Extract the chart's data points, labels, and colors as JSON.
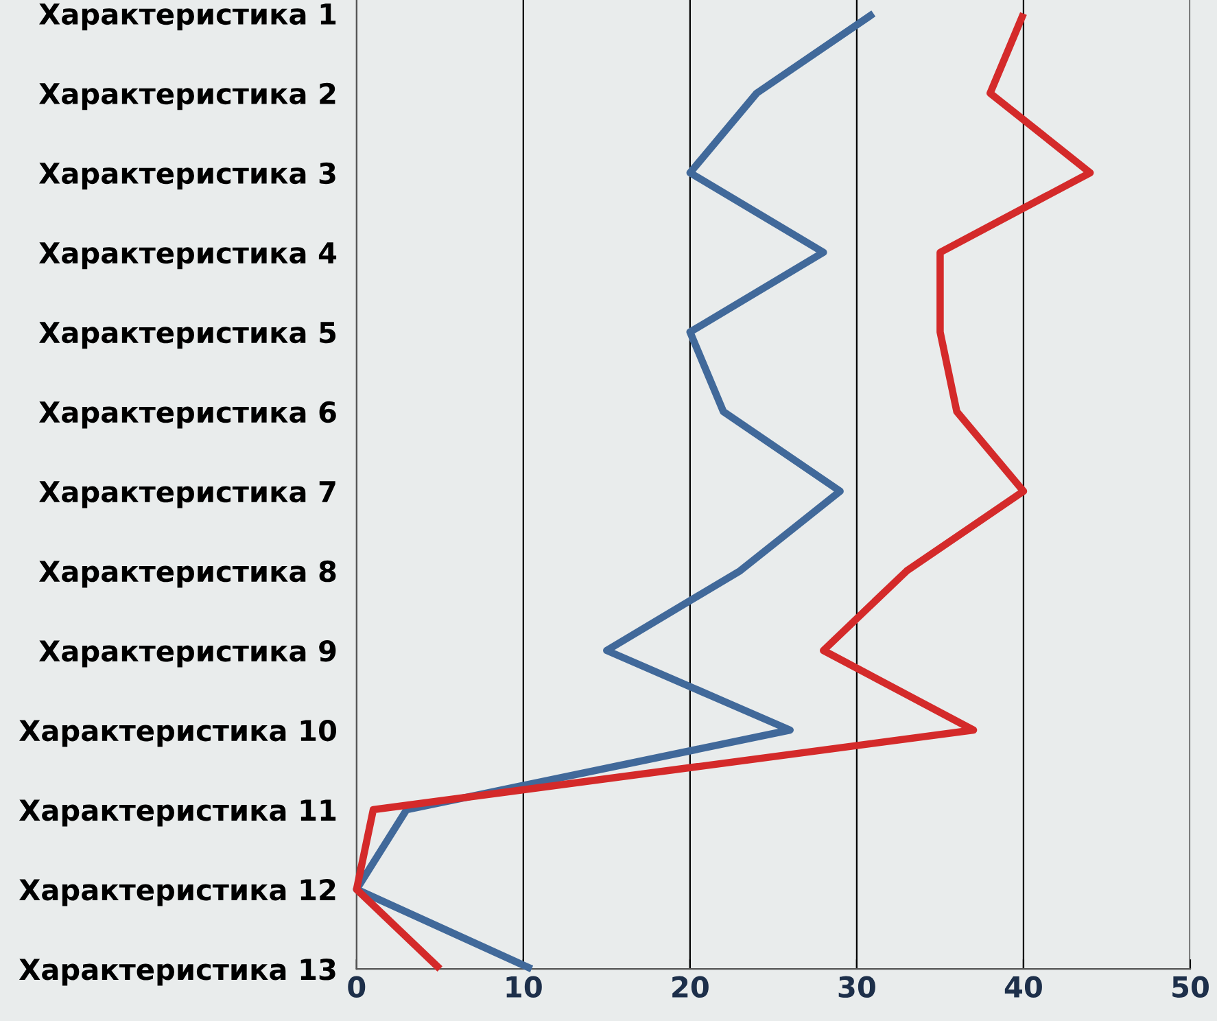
{
  "chart_data": {
    "type": "line",
    "orientation": "horizontal",
    "categories": [
      "Характеристика 1",
      "Характеристика 2",
      "Характеристика 3",
      "Характеристика 4",
      "Характеристика 5",
      "Характеристика 6",
      "Характеристика 7",
      "Характеристика 8",
      "Характеристика 9",
      "Характеристика 10",
      "Характеристика 11",
      "Характеристика 12",
      "Характеристика 13"
    ],
    "series": [
      {
        "color": "#41699a",
        "values": [
          31,
          24,
          20,
          28,
          20,
          22,
          29,
          23,
          15,
          26,
          3,
          0,
          10.5
        ]
      },
      {
        "color": "#d42a2a",
        "values": [
          40,
          38,
          44,
          35,
          35,
          36,
          40,
          33,
          28,
          37,
          1,
          0,
          5
        ]
      }
    ],
    "xlim": [
      0,
      50
    ],
    "xticks": [
      0,
      10,
      20,
      30,
      40,
      50
    ],
    "grid": "x",
    "marker": "none",
    "line_style": "solid"
  }
}
